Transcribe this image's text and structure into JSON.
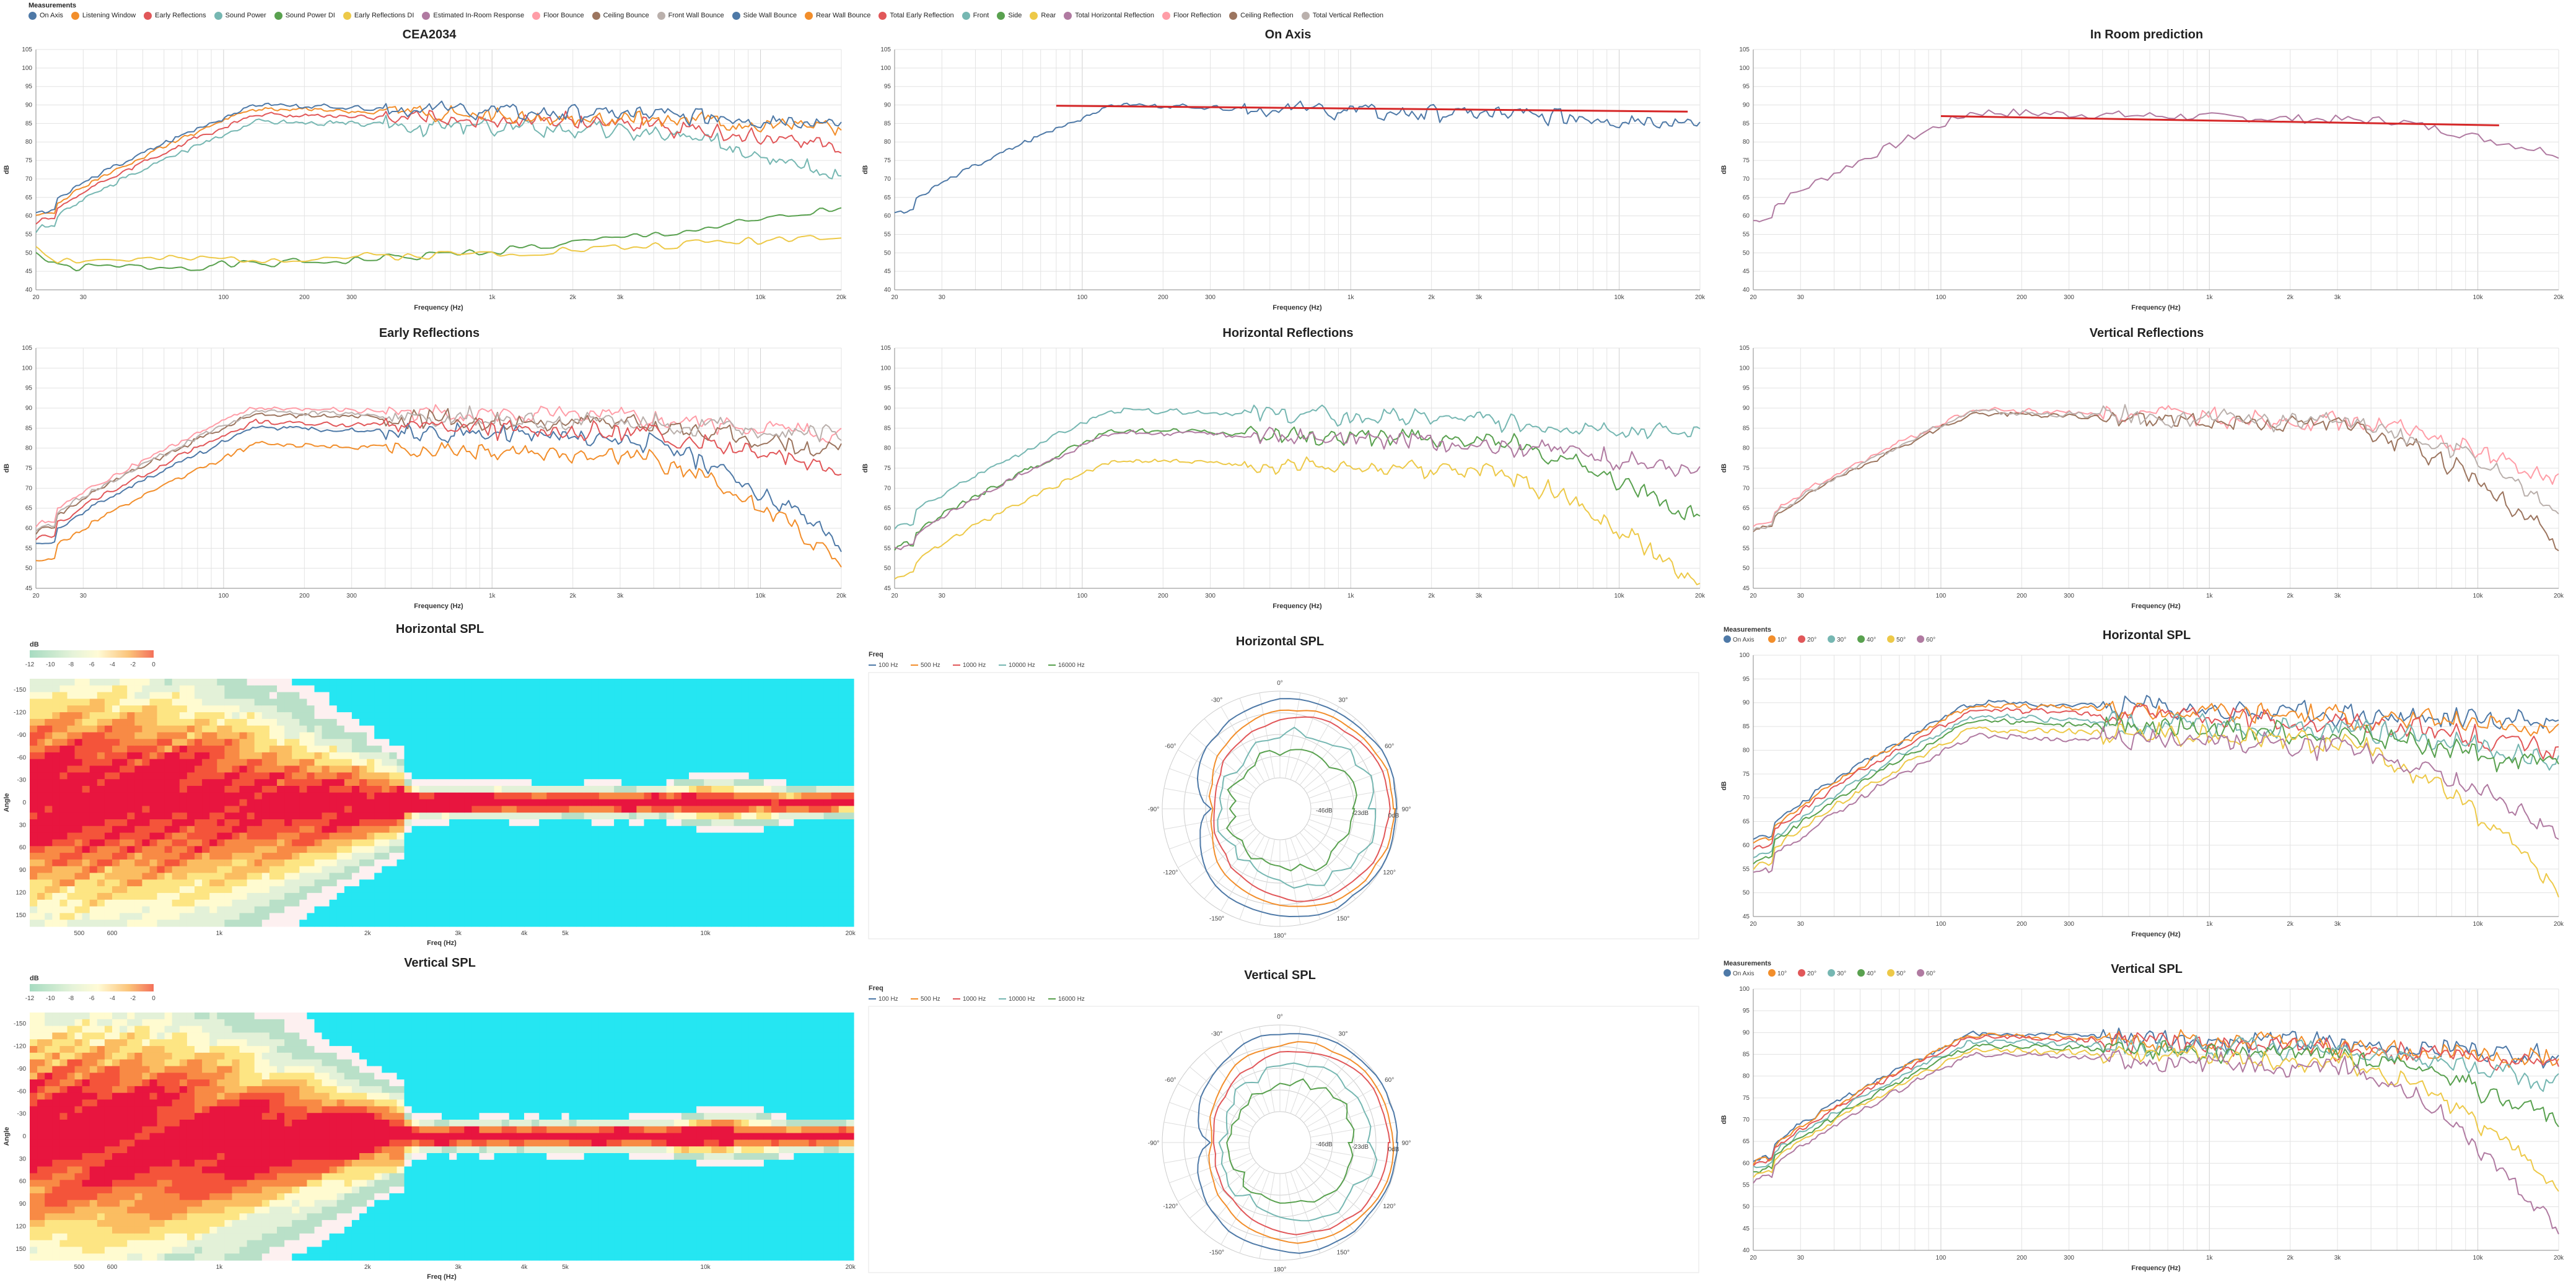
{
  "top_legend": {
    "title": "Measurements",
    "items": [
      {
        "label": "On Axis",
        "color": "#4e79a7"
      },
      {
        "label": "Listening Window",
        "color": "#f28e2b"
      },
      {
        "label": "Early Reflections",
        "color": "#e15759"
      },
      {
        "label": "Sound Power",
        "color": "#76b7b2"
      },
      {
        "label": "Sound Power DI",
        "color": "#59a14f"
      },
      {
        "label": "Early Reflections DI",
        "color": "#edc948"
      },
      {
        "label": "Estimated In-Room Response",
        "color": "#b07aa1"
      },
      {
        "label": "Floor Bounce",
        "color": "#ff9da7"
      },
      {
        "label": "Ceiling Bounce",
        "color": "#9c755f"
      },
      {
        "label": "Front Wall Bounce",
        "color": "#bab0ac"
      },
      {
        "label": "Side Wall Bounce",
        "color": "#4e79a7"
      },
      {
        "label": "Rear Wall Bounce",
        "color": "#f28e2b"
      },
      {
        "label": "Total Early Reflection",
        "color": "#e15759"
      },
      {
        "label": "Front",
        "color": "#76b7b2"
      },
      {
        "label": "Side",
        "color": "#59a14f"
      },
      {
        "label": "Rear",
        "color": "#edc948"
      },
      {
        "label": "Total Horizontal Reflection",
        "color": "#b07aa1"
      },
      {
        "label": "Floor Reflection",
        "color": "#ff9da7"
      },
      {
        "label": "Ceiling Reflection",
        "color": "#9c755f"
      },
      {
        "label": "Total Vertical Reflection",
        "color": "#bab0ac"
      }
    ]
  },
  "freq_ticks": [
    20,
    30,
    100,
    200,
    300,
    "1k",
    "2k",
    "3k",
    "10k",
    "20k"
  ],
  "chart_data": [
    {
      "id": "cea2034",
      "type": "line",
      "title": "CEA2034",
      "xlabel": "Frequency (Hz)",
      "ylabel": "dB",
      "xscale": "log",
      "xlim": [
        20,
        20000
      ],
      "ylim": [
        40,
        105
      ],
      "yticks": [
        40,
        45,
        50,
        55,
        60,
        65,
        70,
        75,
        80,
        85,
        90,
        95,
        100,
        105
      ],
      "series": [
        {
          "name": "Sound Power DI",
          "color": "#59a14f",
          "shape": "di",
          "base": 46,
          "seed": 1,
          "end": 62
        },
        {
          "name": "Early Reflections DI",
          "color": "#edc948",
          "shape": "di",
          "base": 48,
          "seed": 2,
          "end": 55
        },
        {
          "name": "Sound Power",
          "color": "#76b7b2",
          "shape": "resp",
          "level": 85.5,
          "seed": 3,
          "hi": 72
        },
        {
          "name": "Early Reflections",
          "color": "#e15759",
          "shape": "resp",
          "level": 87.5,
          "seed": 4,
          "hi": 78
        },
        {
          "name": "Listening Window",
          "color": "#f28e2b",
          "shape": "resp",
          "level": 89,
          "seed": 5,
          "hi": 84
        },
        {
          "name": "On Axis",
          "color": "#4e79a7",
          "shape": "resp",
          "level": 90,
          "seed": 6,
          "hi": 86
        }
      ]
    },
    {
      "id": "onaxis",
      "type": "line",
      "title": "On Axis",
      "xlabel": "Frequency (Hz)",
      "ylabel": "dB",
      "xscale": "log",
      "xlim": [
        20,
        20000
      ],
      "ylim": [
        40,
        105
      ],
      "yticks": [
        40,
        45,
        50,
        55,
        60,
        65,
        70,
        75,
        80,
        85,
        90,
        95,
        100,
        105
      ],
      "series": [
        {
          "name": "On Axis",
          "color": "#4e79a7",
          "shape": "resp",
          "level": 90,
          "seed": 6,
          "hi": 86
        }
      ],
      "regression": {
        "color": "#d62728",
        "x": [
          80,
          18000
        ],
        "y": [
          89.8,
          88.2
        ]
      }
    },
    {
      "id": "inroom",
      "type": "line",
      "title": "In Room prediction",
      "xlabel": "Frequency (Hz)",
      "ylabel": "dB",
      "xscale": "log",
      "xlim": [
        20,
        20000
      ],
      "ylim": [
        40,
        105
      ],
      "yticks": [
        40,
        45,
        50,
        55,
        60,
        65,
        70,
        75,
        80,
        85,
        90,
        95,
        100,
        105
      ],
      "series": [
        {
          "name": "Estimated In-Room Response",
          "color": "#b07aa1",
          "shape": "room",
          "level": 88,
          "seed": 7,
          "hi": 77
        }
      ],
      "regression": {
        "color": "#d62728",
        "x": [
          100,
          12000
        ],
        "y": [
          87,
          84.5
        ]
      }
    },
    {
      "id": "early",
      "type": "line",
      "title": "Early Reflections",
      "xlabel": "Frequency (Hz)",
      "ylabel": "dB",
      "xscale": "log",
      "xlim": [
        20,
        20000
      ],
      "ylim": [
        45,
        105
      ],
      "yticks": [
        45,
        50,
        55,
        60,
        65,
        70,
        75,
        80,
        85,
        90,
        95,
        100,
        105
      ],
      "series": [
        {
          "name": "Floor Bounce",
          "color": "#ff9da7",
          "shape": "resp",
          "level": 90,
          "seed": 8,
          "hi": 83
        },
        {
          "name": "Ceiling Bounce",
          "color": "#9c755f",
          "shape": "resp",
          "level": 88.5,
          "seed": 9,
          "hi": 79
        },
        {
          "name": "Front Wall Bounce",
          "color": "#bab0ac",
          "shape": "resp",
          "level": 89,
          "seed": 10,
          "hi": 84
        },
        {
          "name": "Side Wall Bounce",
          "color": "#4e79a7",
          "shape": "resp",
          "level": 85,
          "seed": 11,
          "hi": 56
        },
        {
          "name": "Rear Wall Bounce",
          "color": "#f28e2b",
          "shape": "resp",
          "level": 81,
          "seed": 12,
          "hi": 52
        },
        {
          "name": "Total Early Reflection",
          "color": "#e15759",
          "shape": "resp",
          "level": 86.5,
          "seed": 13,
          "hi": 75
        }
      ]
    },
    {
      "id": "horiz",
      "type": "line",
      "title": "Horizontal Reflections",
      "xlabel": "Frequency (Hz)",
      "ylabel": "dB",
      "xscale": "log",
      "xlim": [
        20,
        20000
      ],
      "ylim": [
        45,
        105
      ],
      "yticks": [
        45,
        50,
        55,
        60,
        65,
        70,
        75,
        80,
        85,
        90,
        95,
        100,
        105
      ],
      "series": [
        {
          "name": "Front",
          "color": "#76b7b2",
          "shape": "resp",
          "level": 89.5,
          "seed": 14,
          "hi": 84
        },
        {
          "name": "Side",
          "color": "#59a14f",
          "shape": "resp",
          "level": 84.5,
          "seed": 15,
          "hi": 62
        },
        {
          "name": "Rear",
          "color": "#edc948",
          "shape": "resp",
          "level": 77,
          "seed": 16,
          "hi": 45
        },
        {
          "name": "Total Horizontal Reflection",
          "color": "#b07aa1",
          "shape": "resp",
          "level": 84,
          "seed": 17,
          "hi": 74
        }
      ]
    },
    {
      "id": "vert",
      "type": "line",
      "title": "Vertical Reflections",
      "xlabel": "Frequency (Hz)",
      "ylabel": "dB",
      "xscale": "log",
      "xlim": [
        20,
        20000
      ],
      "ylim": [
        45,
        105
      ],
      "yticks": [
        45,
        50,
        55,
        60,
        65,
        70,
        75,
        80,
        85,
        90,
        95,
        100,
        105
      ],
      "series": [
        {
          "name": "Floor Reflection",
          "color": "#ff9da7",
          "shape": "resp",
          "level": 89.5,
          "seed": 18,
          "hi": 72
        },
        {
          "name": "Ceiling Reflection",
          "color": "#9c755f",
          "shape": "resp",
          "level": 88.5,
          "seed": 19,
          "hi": 57
        },
        {
          "name": "Total Vertical Reflection",
          "color": "#bab0ac",
          "shape": "resp",
          "level": 89,
          "seed": 20,
          "hi": 66
        }
      ]
    },
    {
      "id": "hmap_h",
      "type": "heatmap",
      "title": "Horizontal SPL",
      "xlabel": "Freq (Hz)",
      "ylabel": "Angle",
      "colorbar": {
        "label": "dB",
        "ticks": [
          -12,
          -10,
          -8,
          -6,
          -4,
          -2,
          0
        ]
      },
      "xticks": [
        "500",
        "600",
        "1k",
        "2k",
        "3k",
        "4k",
        "5k",
        "10k",
        "20k"
      ],
      "yticks": [
        -150,
        -120,
        -90,
        -60,
        -30,
        0,
        30,
        60,
        90,
        120,
        150
      ],
      "seed": 21
    },
    {
      "id": "polar_h",
      "type": "polar",
      "title": "Horizontal SPL",
      "legend_title": "Freq",
      "freqs": [
        {
          "label": "100 Hz",
          "color": "#4e79a7"
        },
        {
          "label": "500 Hz",
          "color": "#f28e2b"
        },
        {
          "label": "1000 Hz",
          "color": "#e15759"
        },
        {
          "label": "10000 Hz",
          "color": "#76b7b2"
        },
        {
          "label": "16000 Hz",
          "color": "#59a14f"
        }
      ],
      "angle_labels": [
        "90°",
        "120°",
        "150°",
        "180°",
        "-150°",
        "-120°",
        "-90°",
        "-60°",
        "-30°",
        "0°",
        "30°",
        "60°"
      ],
      "ring_labels": [
        "-46dB",
        "-23dB",
        "0dB"
      ],
      "seed": 22
    },
    {
      "id": "spl_h",
      "type": "line",
      "title": "Horizontal SPL",
      "xlabel": "Frequency (Hz)",
      "ylabel": "dB",
      "legend_title": "Measurements",
      "xscale": "log",
      "xlim": [
        20,
        20000
      ],
      "ylim": [
        45,
        100
      ],
      "yticks": [
        45,
        50,
        55,
        60,
        65,
        70,
        75,
        80,
        85,
        90,
        95,
        100
      ],
      "series": [
        {
          "name": "On Axis",
          "color": "#4e79a7",
          "shape": "resp",
          "level": 90,
          "seed": 23,
          "hi": 86
        },
        {
          "name": "10°",
          "color": "#f28e2b",
          "shape": "resp",
          "level": 89.5,
          "seed": 24,
          "hi": 85
        },
        {
          "name": "20°",
          "color": "#e15759",
          "shape": "resp",
          "level": 88.5,
          "seed": 25,
          "hi": 80
        },
        {
          "name": "30°",
          "color": "#76b7b2",
          "shape": "resp",
          "level": 87,
          "seed": 26,
          "hi": 78
        },
        {
          "name": "40°",
          "color": "#59a14f",
          "shape": "resp",
          "level": 86,
          "seed": 27,
          "hi": 76
        },
        {
          "name": "50°",
          "color": "#edc948",
          "shape": "resp",
          "level": 84.5,
          "seed": 28,
          "hi": 50
        },
        {
          "name": "60°",
          "color": "#b07aa1",
          "shape": "resp",
          "level": 83,
          "seed": 29,
          "hi": 62
        }
      ]
    },
    {
      "id": "hmap_v",
      "type": "heatmap",
      "title": "Vertical SPL",
      "xlabel": "Freq (Hz)",
      "ylabel": "Angle",
      "colorbar": {
        "label": "dB",
        "ticks": [
          -12,
          -10,
          -8,
          -6,
          -4,
          -2,
          0
        ]
      },
      "xticks": [
        "500",
        "600",
        "1k",
        "2k",
        "3k",
        "4k",
        "5k",
        "10k",
        "20k"
      ],
      "yticks": [
        -150,
        -120,
        -90,
        -60,
        -30,
        0,
        30,
        60,
        90,
        120,
        150
      ],
      "seed": 30
    },
    {
      "id": "polar_v",
      "type": "polar",
      "title": "Vertical SPL",
      "legend_title": "Freq",
      "freqs": [
        {
          "label": "100 Hz",
          "color": "#4e79a7"
        },
        {
          "label": "500 Hz",
          "color": "#f28e2b"
        },
        {
          "label": "1000 Hz",
          "color": "#e15759"
        },
        {
          "label": "10000 Hz",
          "color": "#76b7b2"
        },
        {
          "label": "16000 Hz",
          "color": "#59a14f"
        }
      ],
      "angle_labels": [
        "90°",
        "120°",
        "150°",
        "180°",
        "-150°",
        "-120°",
        "-90°",
        "-60°",
        "-30°",
        "0°",
        "30°",
        "60°"
      ],
      "ring_labels": [
        "-46dB",
        "-23dB",
        "0dB"
      ],
      "seed": 31
    },
    {
      "id": "spl_v",
      "type": "line",
      "title": "Vertical SPL",
      "xlabel": "Frequency (Hz)",
      "ylabel": "dB",
      "legend_title": "Measurements",
      "xscale": "log",
      "xlim": [
        20,
        20000
      ],
      "ylim": [
        40,
        100
      ],
      "yticks": [
        40,
        45,
        50,
        55,
        60,
        65,
        70,
        75,
        80,
        85,
        90,
        95,
        100
      ],
      "series": [
        {
          "name": "On Axis",
          "color": "#4e79a7",
          "shape": "resp",
          "level": 90,
          "seed": 32,
          "hi": 85
        },
        {
          "name": "10°",
          "color": "#f28e2b",
          "shape": "resp",
          "level": 89.5,
          "seed": 33,
          "hi": 84
        },
        {
          "name": "20°",
          "color": "#e15759",
          "shape": "resp",
          "level": 89,
          "seed": 34,
          "hi": 82
        },
        {
          "name": "30°",
          "color": "#76b7b2",
          "shape": "resp",
          "level": 88,
          "seed": 35,
          "hi": 78
        },
        {
          "name": "40°",
          "color": "#59a14f",
          "shape": "resp",
          "level": 87,
          "seed": 36,
          "hi": 70
        },
        {
          "name": "50°",
          "color": "#edc948",
          "shape": "resp",
          "level": 86,
          "seed": 37,
          "hi": 55
        },
        {
          "name": "60°",
          "color": "#b07aa1",
          "shape": "resp",
          "level": 85,
          "seed": 38,
          "hi": 45
        }
      ]
    }
  ]
}
